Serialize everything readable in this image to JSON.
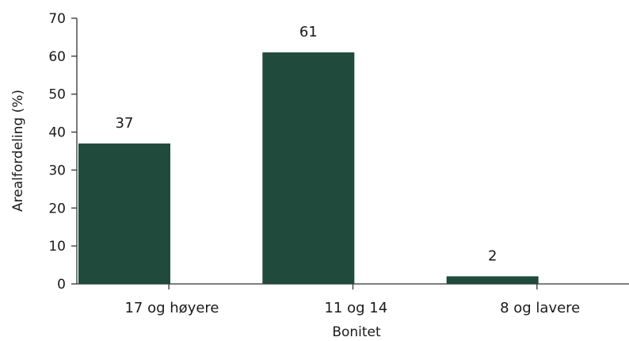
{
  "chart_data": {
    "type": "bar",
    "title": "",
    "xlabel": "Bonitet",
    "ylabel": "Arealfordeling (%)",
    "categories": [
      "17 og høyere",
      "11 og 14",
      "8 og lavere"
    ],
    "values": [
      37,
      61,
      2
    ],
    "data_labels": [
      "37",
      "61",
      "2"
    ],
    "ylim": [
      0,
      70
    ],
    "yticks": [
      0,
      10,
      20,
      30,
      40,
      50,
      60,
      70
    ],
    "grid": false,
    "legend": "none",
    "bar_color": "#1f4a3c"
  }
}
